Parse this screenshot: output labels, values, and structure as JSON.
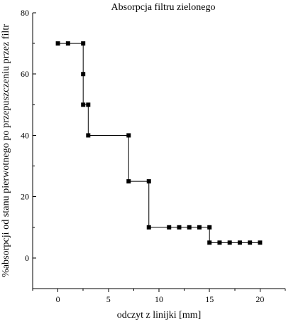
{
  "chart_data": {
    "type": "line",
    "title": "Absorpcja filtru zielonego",
    "xlabel": "odczyt z linijki [mm]",
    "ylabel": "%absorpcji od stanu pierwotnego po przepuszczeniu przez filtr",
    "xlim": [
      -2.5,
      22.5
    ],
    "ylim": [
      -10,
      80
    ],
    "x_ticks": [
      0,
      5,
      10,
      15,
      20
    ],
    "y_ticks": [
      0,
      20,
      40,
      60,
      80
    ],
    "grid": false,
    "legend": "none",
    "line_style": "step",
    "marker": "square",
    "color": "#000000",
    "series": [
      {
        "points": [
          [
            0,
            70
          ],
          [
            1,
            70
          ],
          [
            2.5,
            70
          ],
          [
            2.5,
            60
          ],
          [
            2.5,
            50
          ],
          [
            3,
            50
          ],
          [
            3,
            40
          ],
          [
            7,
            40
          ],
          [
            7,
            25
          ],
          [
            9,
            25
          ],
          [
            9,
            10
          ],
          [
            11,
            10
          ],
          [
            12,
            10
          ],
          [
            13,
            10
          ],
          [
            14,
            10
          ],
          [
            15,
            10
          ],
          [
            15,
            5
          ],
          [
            16,
            5
          ],
          [
            17,
            5
          ],
          [
            18,
            5
          ],
          [
            19,
            5
          ],
          [
            20,
            5
          ]
        ]
      }
    ]
  }
}
